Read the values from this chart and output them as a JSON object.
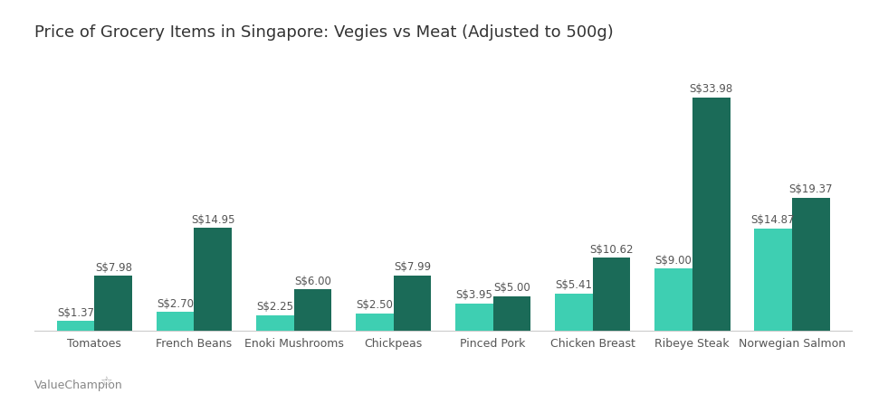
{
  "title": "Price of Grocery Items in Singapore: Vegies vs Meat (Adjusted to 500g)",
  "categories": [
    "Tomatoes",
    "French Beans",
    "Enoki Mushrooms",
    "Chickpeas",
    "Pinced Pork",
    "Chicken Breast",
    "Ribeye Steak",
    "Norwegian Salmon"
  ],
  "inorganic": [
    1.37,
    2.7,
    2.25,
    2.5,
    3.95,
    5.41,
    9.0,
    14.87
  ],
  "organic": [
    7.98,
    14.95,
    6.0,
    7.99,
    5.0,
    10.62,
    33.98,
    19.37
  ],
  "inorganic_labels": [
    "S$1.37",
    "S$2.70",
    "S$2.25",
    "S$2.50",
    "S$3.95",
    "S$5.41",
    "S$9.00",
    "S$14.87"
  ],
  "organic_labels": [
    "S$7.98",
    "S$14.95",
    "S$6.00",
    "S$7.99",
    "S$5.00",
    "S$10.62",
    "S$33.98",
    "S$19.37"
  ],
  "color_inorganic": "#3ECFB2",
  "color_organic": "#1B6B58",
  "watermark": "ValueChampion",
  "ylim": [
    0,
    40
  ],
  "bar_width": 0.38,
  "title_fontsize": 13,
  "label_fontsize": 8.5,
  "tick_fontsize": 9,
  "legend_fontsize": 9
}
